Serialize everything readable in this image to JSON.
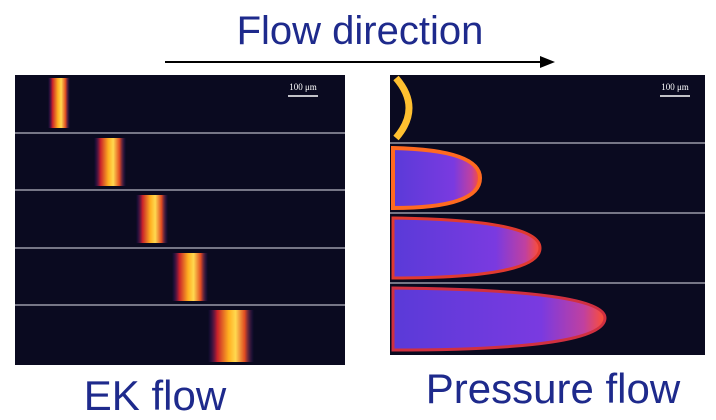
{
  "header": {
    "title": "Flow direction"
  },
  "panels": [
    {
      "scale_label": "100 μm",
      "caption": "EK flow"
    },
    {
      "scale_label": "100 μm",
      "caption": "Pressure flow"
    }
  ]
}
